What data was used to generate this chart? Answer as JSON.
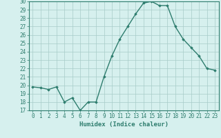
{
  "x": [
    0,
    1,
    2,
    3,
    4,
    5,
    6,
    7,
    8,
    9,
    10,
    11,
    12,
    13,
    14,
    15,
    16,
    17,
    18,
    19,
    20,
    21,
    22,
    23
  ],
  "y": [
    19.8,
    19.7,
    19.5,
    19.8,
    18.0,
    18.5,
    17.0,
    18.0,
    18.0,
    21.0,
    23.5,
    25.5,
    27.0,
    28.5,
    29.8,
    30.0,
    29.5,
    29.5,
    27.0,
    25.5,
    24.5,
    23.5,
    22.0,
    21.8
  ],
  "xlim": [
    -0.5,
    23.5
  ],
  "ylim": [
    17,
    30
  ],
  "yticks": [
    17,
    18,
    19,
    20,
    21,
    22,
    23,
    24,
    25,
    26,
    27,
    28,
    29,
    30
  ],
  "xticks": [
    0,
    1,
    2,
    3,
    4,
    5,
    6,
    7,
    8,
    9,
    10,
    11,
    12,
    13,
    14,
    15,
    16,
    17,
    18,
    19,
    20,
    21,
    22,
    23
  ],
  "xlabel": "Humidex (Indice chaleur)",
  "line_color": "#2e7d6e",
  "marker": "D",
  "marker_size": 1.8,
  "line_width": 1.0,
  "bg_color": "#d6f0ee",
  "grid_color": "#a8ccc8",
  "axis_color": "#2e7d6e",
  "xlabel_fontsize": 6.5,
  "tick_fontsize": 5.5,
  "tick_color": "#2e7d6e"
}
